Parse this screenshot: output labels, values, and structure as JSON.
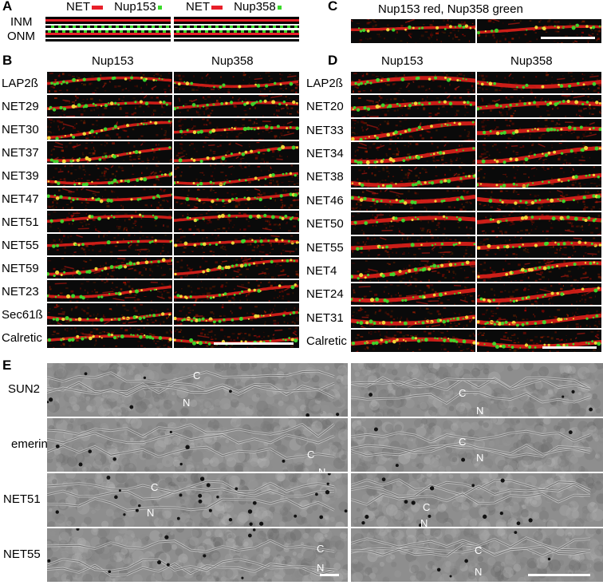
{
  "panel_letters": {
    "a": "A",
    "b": "B",
    "c": "C",
    "d": "D",
    "e": "E"
  },
  "panel_a": {
    "legend_left_net": "NET",
    "legend_left_nup": "Nup153",
    "legend_right_net": "NET",
    "legend_right_nup": "Nup358",
    "row_inm": "INM",
    "row_onm": "ONM",
    "colors": {
      "net": "#e8202a",
      "nup": "#3adb2a"
    }
  },
  "panel_b": {
    "col1": "Nup153",
    "col2": "Nup358",
    "rows": [
      "LAP2ß",
      "NET29",
      "NET30",
      "NET37",
      "NET39",
      "NET47",
      "NET51",
      "NET55",
      "NET59",
      "NET23",
      "Sec61ß",
      "Calretic"
    ]
  },
  "panel_c": {
    "title": "Nup153 red, Nup358 green"
  },
  "panel_d": {
    "col1": "Nup153",
    "col2": "Nup358",
    "rows": [
      "LAP2ß",
      "NET20",
      "NET33",
      "NET34",
      "NET38",
      "NET46",
      "NET50",
      "NET55",
      "NET4",
      "NET24",
      "NET31",
      "Calretic"
    ]
  },
  "panel_e": {
    "rows": [
      "SUN2",
      "emerin",
      "NET51",
      "NET55"
    ],
    "marker_c": "C",
    "marker_n": "N"
  }
}
